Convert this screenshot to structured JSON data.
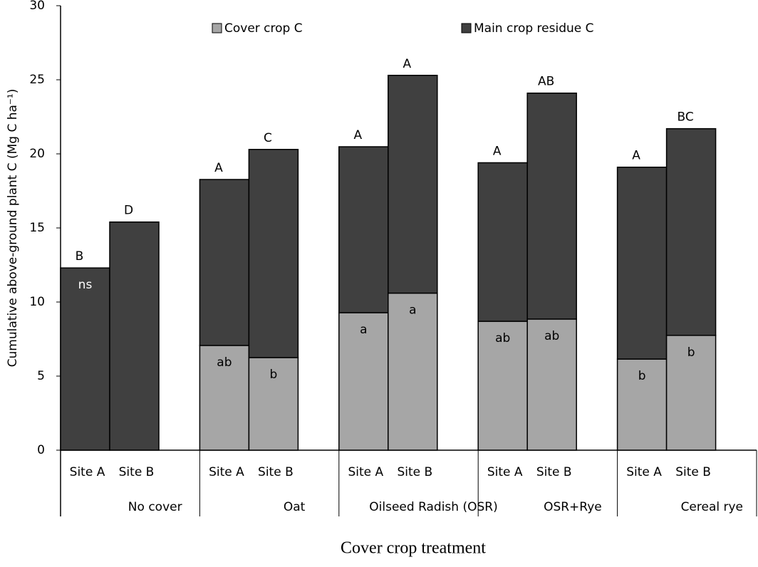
{
  "chart_data": {
    "type": "stacked_bar",
    "y_label": "Cumulative above-ground plant C (Mg C ha⁻¹)",
    "x_label": "Cover crop treatment",
    "categories": [
      "Site A",
      "Site B",
      "Site A",
      "Site B",
      "Site A",
      "Site B",
      "Site A",
      "Site B",
      "Site A",
      "Site B"
    ],
    "groups": [
      "No cover",
      "Oat",
      "Oilseed Radish (OSR)",
      "OSR+Rye",
      "Cereal rye"
    ],
    "series": [
      {
        "name": "Cover crop C",
        "color": "#a6a6a6",
        "values": [
          null,
          null,
          7.07,
          6.25,
          9.28,
          10.6,
          8.7,
          8.85,
          6.15,
          7.75
        ]
      },
      {
        "name": "Main crop residue C",
        "color": "#404040",
        "values": [
          12.3,
          15.4,
          11.2,
          14.05,
          11.2,
          14.7,
          10.7,
          15.25,
          12.95,
          13.95
        ]
      }
    ],
    "top_labels": [
      "B",
      "D",
      "A",
      "C",
      "A",
      "A",
      "A",
      "AB",
      "A",
      "BC"
    ],
    "cover_labels": [
      "ns",
      null,
      "ab",
      "b",
      "a",
      "a",
      "ab",
      "ab",
      "b",
      "b"
    ],
    "ylim": [
      0,
      30
    ],
    "yticks": [
      0,
      5,
      10,
      15,
      20,
      25,
      30
    ]
  }
}
